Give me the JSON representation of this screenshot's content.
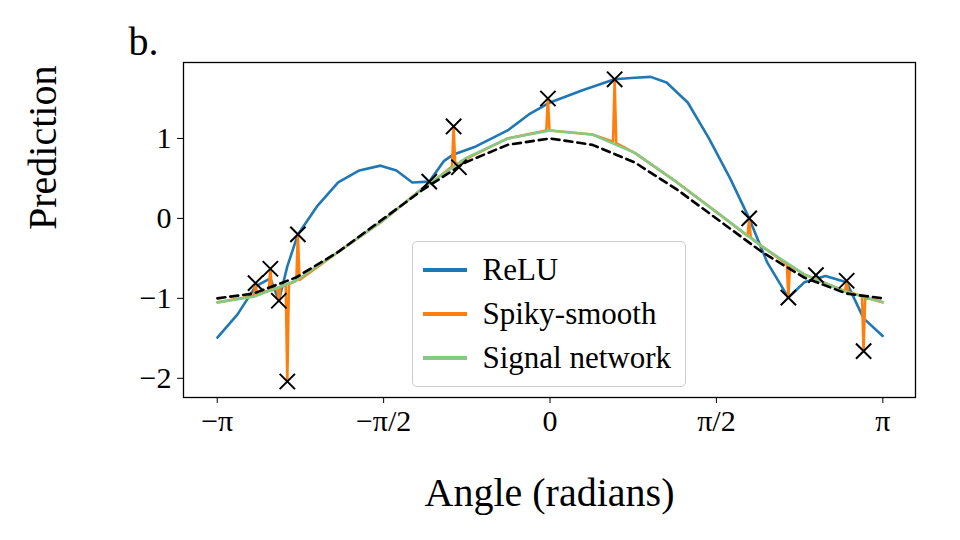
{
  "chart_data": {
    "type": "line",
    "title": "b.",
    "x_label": "Angle (radians)",
    "y_label": "Prediction",
    "xlim": [
      -3.46,
      3.45
    ],
    "ylim": [
      -2.24,
      1.95
    ],
    "xticks": [
      {
        "value": -3.14159,
        "label": "−π"
      },
      {
        "value": -1.5708,
        "label": "−π/2"
      },
      0,
      {
        "value": 1.5708,
        "label": "π/2"
      },
      {
        "value": 3.14159,
        "label": "π"
      }
    ],
    "yticks": [
      -2,
      -1,
      0,
      1
    ],
    "grid": false,
    "legend": "lower center",
    "series": [
      {
        "name": "ReLU",
        "type": "line",
        "color": "#1f77b4",
        "x": [
          -3.14,
          -2.95,
          -2.78,
          -2.64,
          -2.56,
          -2.48,
          -2.38,
          -2.2,
          -2.0,
          -1.8,
          -1.6,
          -1.45,
          -1.3,
          -1.14,
          -1.0,
          -0.91,
          -0.7,
          -0.4,
          -0.2,
          0,
          0.3,
          0.61,
          0.8,
          0.95,
          1.1,
          1.3,
          1.5,
          1.7,
          1.88,
          2.05,
          2.25,
          2.4,
          2.6,
          2.8,
          2.96,
          3.14
        ],
        "values": [
          -1.49,
          -1.2,
          -0.85,
          -0.75,
          -1.03,
          -0.6,
          -0.2,
          0.15,
          0.45,
          0.6,
          0.66,
          0.6,
          0.45,
          0.46,
          0.72,
          0.8,
          0.9,
          1.1,
          1.3,
          1.45,
          1.6,
          1.74,
          1.76,
          1.77,
          1.7,
          1.45,
          1.0,
          0.5,
          0.0,
          -0.55,
          -0.99,
          -0.8,
          -0.72,
          -0.8,
          -1.25,
          -1.47
        ]
      },
      {
        "name": "Spiky-smooth",
        "type": "line",
        "color": "#ff7f0e",
        "x": [
          -3.14,
          -2.795,
          -2.78,
          -2.765,
          -2.655,
          -2.64,
          -2.625,
          -2.575,
          -2.56,
          -2.545,
          -2.495,
          -2.48,
          -2.465,
          -2.395,
          -2.38,
          -2.365,
          -2.0,
          -1.6,
          -1.2,
          -1.155,
          -1.14,
          -1.125,
          -0.925,
          -0.91,
          -0.895,
          -0.875,
          -0.86,
          -0.845,
          -0.4,
          -0.035,
          -0.02,
          -0.005,
          0.4,
          0.595,
          0.61,
          0.625,
          0.8,
          1.2,
          1.6,
          1.865,
          1.88,
          1.895,
          2.0,
          2.235,
          2.25,
          2.265,
          2.4,
          2.495,
          2.51,
          2.525,
          2.785,
          2.8,
          2.815,
          2.945,
          2.96,
          2.975,
          3.14
        ],
        "values": [
          -1.05,
          -0.97,
          -0.81,
          -0.96,
          -0.9,
          -0.63,
          -0.9,
          -0.87,
          -1.03,
          -0.86,
          -0.83,
          -2.04,
          -0.82,
          -0.78,
          -0.2,
          -0.77,
          -0.42,
          -0.05,
          0.38,
          0.42,
          0.46,
          0.44,
          0.65,
          1.15,
          0.67,
          0.69,
          0.64,
          0.71,
          1.0,
          1.1,
          1.5,
          1.1,
          1.05,
          0.96,
          1.74,
          0.94,
          0.82,
          0.45,
          0.05,
          -0.22,
          0.0,
          -0.24,
          -0.35,
          -0.57,
          -0.99,
          -0.59,
          -0.7,
          -0.75,
          -0.71,
          -0.77,
          -0.91,
          -0.78,
          -0.92,
          -0.97,
          -1.66,
          -0.99,
          -1.05
        ]
      },
      {
        "name": "Signal network",
        "type": "line",
        "color": "#86c986",
        "x": [
          -3.14,
          -2.8,
          -2.4,
          -2.0,
          -1.6,
          -1.2,
          -0.8,
          -0.4,
          0,
          0.4,
          0.8,
          1.2,
          1.6,
          2.0,
          2.4,
          2.8,
          3.14
        ],
        "values": [
          -1.05,
          -0.98,
          -0.78,
          -0.42,
          -0.05,
          0.38,
          0.75,
          1.0,
          1.1,
          1.05,
          0.82,
          0.45,
          0.05,
          -0.35,
          -0.7,
          -0.92,
          -1.05
        ]
      },
      {
        "type": "line",
        "line_style": "dashed",
        "color": "#000000",
        "x": [
          -3.14,
          -2.8,
          -2.4,
          -2.0,
          -1.6,
          -1.2,
          -0.8,
          -0.4,
          0,
          0.4,
          0.8,
          1.2,
          1.6,
          2.0,
          2.4,
          2.8,
          3.14
        ],
        "values": [
          -1.0,
          -0.94,
          -0.74,
          -0.42,
          -0.03,
          0.36,
          0.7,
          0.92,
          1.0,
          0.92,
          0.7,
          0.36,
          -0.03,
          -0.42,
          -0.74,
          -0.94,
          -1.0
        ]
      },
      {
        "type": "scatter",
        "marker": "x",
        "color": "#000000",
        "x": [
          -2.78,
          -2.64,
          -2.56,
          -2.48,
          -2.38,
          -1.14,
          -0.91,
          -0.86,
          -0.02,
          0.61,
          1.88,
          2.25,
          2.51,
          2.8,
          2.96
        ],
        "values": [
          -0.81,
          -0.63,
          -1.03,
          -2.04,
          -0.2,
          0.46,
          1.15,
          0.64,
          1.5,
          1.74,
          0.0,
          -0.99,
          -0.71,
          -0.78,
          -1.66
        ]
      }
    ]
  }
}
